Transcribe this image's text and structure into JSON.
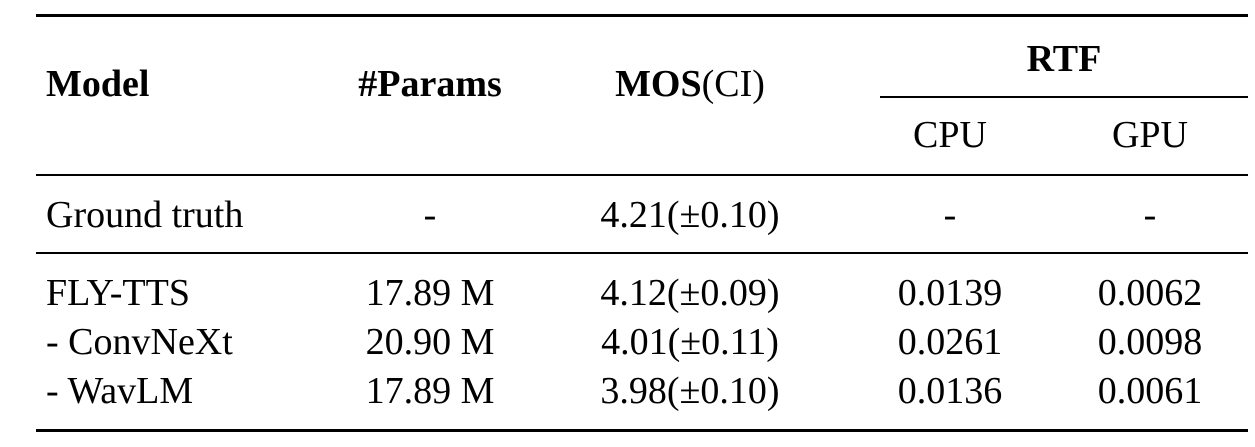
{
  "header": {
    "model": "Model",
    "params": "#Params",
    "mos_bold": "MOS",
    "mos_ci": "(CI)",
    "rtf": "RTF",
    "cpu": "CPU",
    "gpu": "GPU"
  },
  "rows": [
    {
      "model": "Ground truth",
      "params": "-",
      "mos": "4.21(±0.10)",
      "cpu": "-",
      "gpu": "-"
    },
    {
      "model": "FLY-TTS",
      "params": "17.89 M",
      "mos": "4.12(±0.09)",
      "cpu": "0.0139",
      "gpu": "0.0062"
    },
    {
      "model": "- ConvNeXt",
      "params": "20.90 M",
      "mos": "4.01(±0.11)",
      "cpu": "0.0261",
      "gpu": "0.0098"
    },
    {
      "model": "- WavLM",
      "params": "17.89 M",
      "mos": "3.98(±0.10)",
      "cpu": "0.0136",
      "gpu": "0.0061"
    }
  ]
}
